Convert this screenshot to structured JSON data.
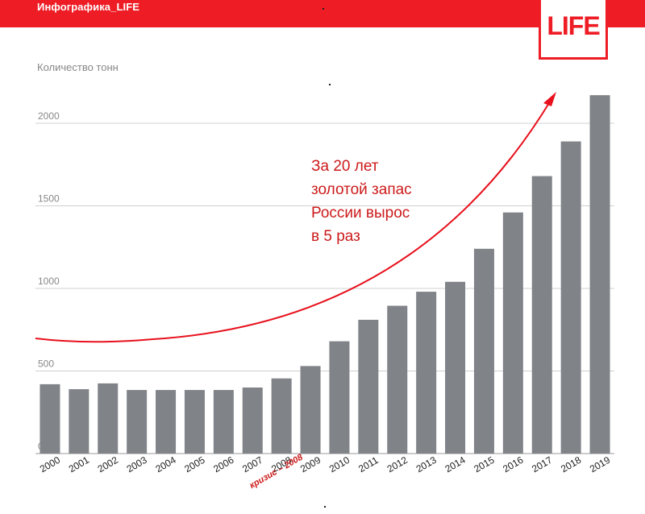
{
  "header": {
    "brand": "Инфографика_LIFE",
    "logo": "LIFE"
  },
  "colors": {
    "brand_red": "#ee1c24",
    "bar": "#808388",
    "grid": "#d0d0d0",
    "axis_text": "#888888",
    "annotation": "#cc1a1a"
  },
  "chart_data": {
    "type": "bar",
    "ylabel": "Количество тонн",
    "ylim": [
      0,
      2200
    ],
    "yticks": [
      0,
      500,
      1000,
      1500,
      2000
    ],
    "grid": true,
    "categories": [
      "2000",
      "2001",
      "2002",
      "2003",
      "2004",
      "2005",
      "2006",
      "2007",
      "2008",
      "2009",
      "2010",
      "2011",
      "2012",
      "2013",
      "2014",
      "2015",
      "2016",
      "2017",
      "2018",
      "2019"
    ],
    "values": [
      420,
      390,
      425,
      385,
      385,
      385,
      385,
      400,
      455,
      530,
      680,
      810,
      895,
      980,
      1040,
      1240,
      1460,
      1680,
      1890,
      2170
    ],
    "highlight_category": "2008",
    "highlight_label": "кризис – 2008",
    "annotation_lines": [
      "За 20 лет",
      "золотой запас",
      "России вырос",
      "в 5 раз"
    ]
  }
}
